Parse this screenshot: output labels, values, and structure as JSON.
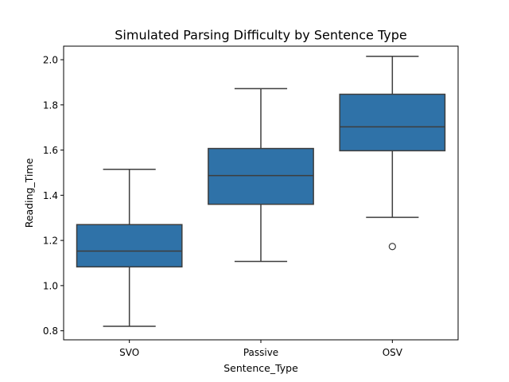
{
  "chart_data": {
    "type": "box",
    "title": "Simulated Parsing Difficulty by Sentence Type",
    "xlabel": "Sentence_Type",
    "ylabel": "Reading_Time",
    "categories": [
      "SVO",
      "Passive",
      "OSV"
    ],
    "ylim": [
      0.76,
      2.06
    ],
    "yticks": [
      0.8,
      1.0,
      1.2,
      1.4,
      1.6,
      1.8,
      2.0
    ],
    "ytick_labels": [
      "0.8",
      "1.0",
      "1.2",
      "1.4",
      "1.6",
      "1.8",
      "2.0"
    ],
    "grid": false,
    "box_color": "#2f72a8",
    "edge_color": "#3d3d3d",
    "boxes": [
      {
        "category": "SVO",
        "whisker_low": 0.82,
        "q1": 1.083,
        "median": 1.153,
        "q3": 1.27,
        "whisker_high": 1.515,
        "outliers": []
      },
      {
        "category": "Passive",
        "whisker_low": 1.107,
        "q1": 1.36,
        "median": 1.487,
        "q3": 1.607,
        "whisker_high": 1.872,
        "outliers": []
      },
      {
        "category": "OSV",
        "whisker_low": 1.302,
        "q1": 1.597,
        "median": 1.703,
        "q3": 1.847,
        "whisker_high": 2.015,
        "outliers": [
          1.173
        ]
      }
    ]
  }
}
